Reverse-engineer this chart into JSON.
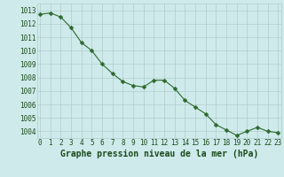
{
  "x": [
    0,
    1,
    2,
    3,
    4,
    5,
    6,
    7,
    8,
    9,
    10,
    11,
    12,
    13,
    14,
    15,
    16,
    17,
    18,
    19,
    20,
    21,
    22,
    23
  ],
  "y": [
    1012.7,
    1012.8,
    1012.5,
    1011.7,
    1010.6,
    1010.0,
    1009.0,
    1008.3,
    1007.7,
    1007.4,
    1007.3,
    1007.8,
    1007.8,
    1007.2,
    1006.3,
    1005.8,
    1005.3,
    1004.5,
    1004.1,
    1003.7,
    1004.0,
    1004.3,
    1004.0,
    1003.9
  ],
  "line_color": "#2d6a2d",
  "marker": "D",
  "marker_size": 2.5,
  "bg_color": "#ceeaea",
  "grid_color": "#b0cccc",
  "xlabel": "Graphe pression niveau de la mer (hPa)",
  "xlabel_color": "#1a4a1a",
  "ylim": [
    1003.5,
    1013.5
  ],
  "yticks": [
    1004,
    1005,
    1006,
    1007,
    1008,
    1009,
    1010,
    1011,
    1012,
    1013
  ],
  "xticks": [
    0,
    1,
    2,
    3,
    4,
    5,
    6,
    7,
    8,
    9,
    10,
    11,
    12,
    13,
    14,
    15,
    16,
    17,
    18,
    19,
    20,
    21,
    22,
    23
  ],
  "tick_fontsize": 5.5,
  "label_fontsize": 7.0
}
